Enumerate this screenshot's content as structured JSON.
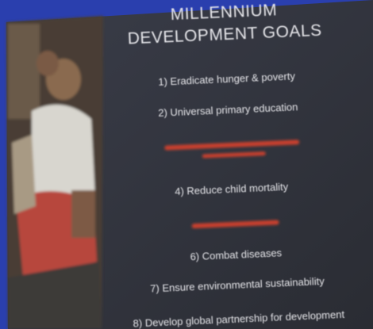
{
  "slide": {
    "title_line1": "MILLENNIUM",
    "title_line2": "DEVELOPMENT GOALS",
    "items": [
      "1) Eradicate hunger & poverty",
      "2) Universal primary education",
      "4) Reduce child mortality",
      "6) Combat diseases",
      "7) Ensure environmental sustainability",
      "8) Develop global partnership for development"
    ]
  }
}
